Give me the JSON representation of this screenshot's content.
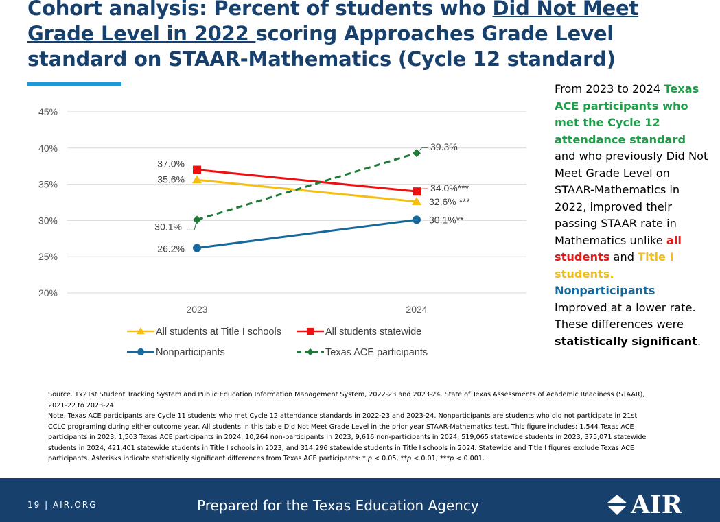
{
  "title": {
    "prefix": "Cohort analysis: Percent of students who ",
    "underlined": "Did Not Meet Grade Level in 2022 ",
    "suffix": "scoring Approaches Grade Level standard on STAAR-Mathematics (Cycle 12 standard)"
  },
  "side_text": {
    "p1": "From 2023 to 2024 ",
    "p2": "Texas ACE participants who met the Cycle 12 attendance standard",
    "p3": " and who previously Did Not Meet Grade Level on STAAR-Mathematics in 2022, improved their passing STAAR rate in Mathematics unlike ",
    "p4": "all students",
    "p5": " and ",
    "p6": "Title I students.",
    "p7": "Nonparticipants",
    "p8": " improved at a lower rate. These differences were ",
    "p9": "statistically significant",
    "p10": "."
  },
  "notes": {
    "source": "Source. Tx21st Student Tracking System and Public Education Information Management System, 2022-23 and 2023-24. State of Texas Assessments of Academic Readiness (STAAR), 2021-22 to 2023-24.",
    "note_a": "Note. Texas ACE participants are Cycle 11 students who met Cycle 12 attendance standards in 2022-23 and 2023-24. Nonparticipants are students who did not participate in 21st CCLC programing during either outcome year. All students in this table Did Not Meet Grade Level in the prior year STAAR-Mathematics test. This figure includes: 1,544 Texas ACE participants in 2023, 1,503 Texas ACE participants in 2024, 10,264 non-participants in 2023, 9,616 non-participants in 2024, 519,065 statewide students in 2023, 375,071 statewide students in 2024, 421,401 statewide students in Title I schools in 2023, and 314,296 statewide students in Title I schools in 2024. Statewide and Title I figures exclude Texas ACE participants. Asterisks indicate statistically significant differences from Texas ACE participants: * ",
    "p": "p",
    "note_b": " < 0.05, **",
    "note_c": " < 0.01, ***",
    "note_d": " < 0.001."
  },
  "footer": {
    "page": "19  |  AIR.ORG",
    "prepared": "Prepared for the Texas Education Agency",
    "logo": "AIR"
  },
  "colors": {
    "title_i": "#F5BE12",
    "statewide": "#EE1010",
    "nonparticipants": "#17699B",
    "ace": "#1F7A3A",
    "grid": "#D9D9D9"
  },
  "chart_data": {
    "type": "line",
    "categories": [
      "2023",
      "2024"
    ],
    "ylim": [
      20,
      45
    ],
    "yticks": [
      20,
      25,
      30,
      35,
      40,
      45
    ],
    "ytick_labels": [
      "20%",
      "25%",
      "30%",
      "35%",
      "40%",
      "45%"
    ],
    "series": [
      {
        "name": "All students at Title I schools",
        "key": "title_i",
        "marker": "triangle",
        "dash": false,
        "values": [
          35.6,
          32.6
        ],
        "labels": [
          "35.6%",
          "32.6% ***"
        ]
      },
      {
        "name": "All students statewide",
        "key": "statewide",
        "marker": "square",
        "dash": false,
        "values": [
          37.0,
          34.0
        ],
        "labels": [
          "37.0%",
          "34.0%***"
        ]
      },
      {
        "name": "Nonparticipants",
        "key": "nonparticipants",
        "marker": "circle",
        "dash": false,
        "values": [
          26.2,
          30.1
        ],
        "labels": [
          "26.2%",
          "30.1%**"
        ]
      },
      {
        "name": "Texas ACE participants",
        "key": "ace",
        "marker": "diamond",
        "dash": true,
        "values": [
          30.1,
          39.3
        ],
        "labels": [
          "30.1%",
          "39.3%"
        ]
      }
    ],
    "legend_position": "bottom"
  }
}
